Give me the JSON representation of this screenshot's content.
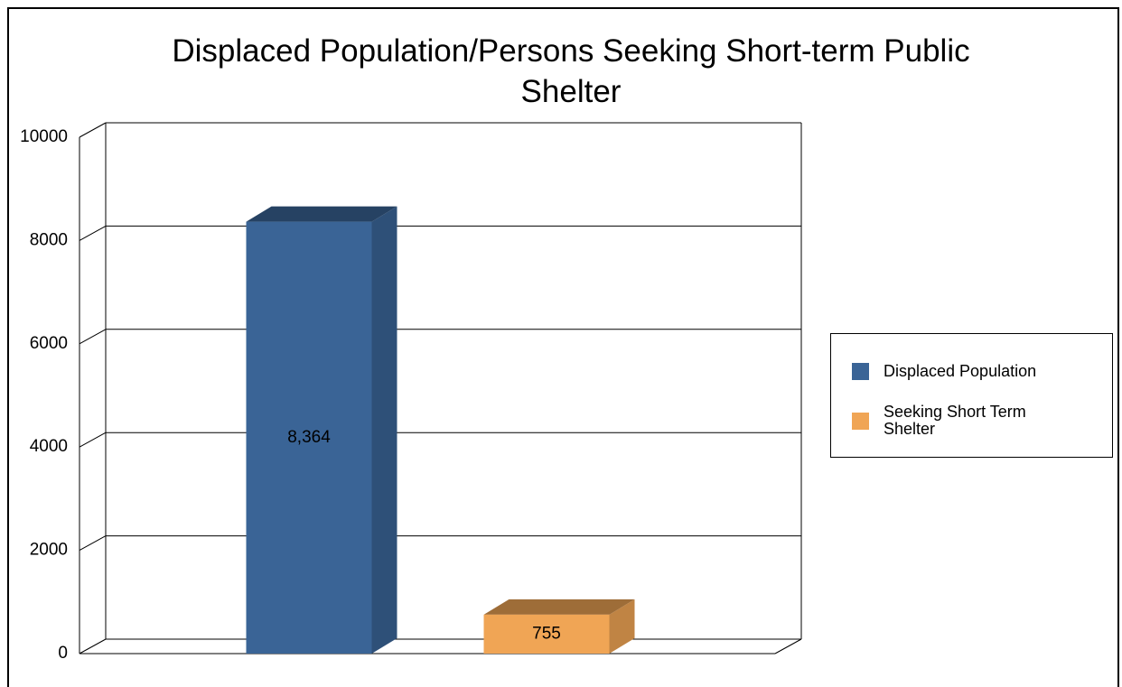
{
  "chart_data": {
    "type": "bar3d",
    "title": "Displaced Population/Persons Seeking Short-term Public Shelter",
    "categories": [
      null
    ],
    "series": [
      {
        "name": "Displaced Population",
        "color": "#3a6496",
        "values": [
          8364
        ],
        "value_labels": [
          "8,364"
        ]
      },
      {
        "name": "Seeking Short Term Shelter",
        "color": "#f0a555",
        "values": [
          755
        ],
        "value_labels": [
          "755"
        ]
      }
    ],
    "ylim": [
      0,
      10000
    ],
    "yticks": [
      0,
      2000,
      4000,
      6000,
      8000,
      10000
    ],
    "grid": true,
    "legend": "right"
  }
}
